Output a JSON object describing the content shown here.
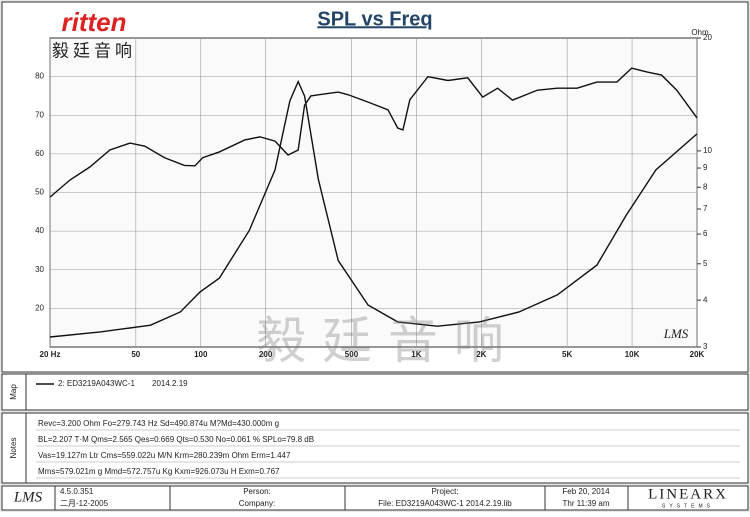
{
  "logo": {
    "brand": "ritten",
    "chinese": "毅廷音响"
  },
  "watermark": "毅 廷 音 响",
  "chart_data": {
    "type": "line",
    "title": "SPL vs Freq",
    "y2label": "Ohm",
    "badge": "LMS",
    "xscale": "log",
    "y2scale": "log",
    "grid": true,
    "xlim": [
      20,
      20000
    ],
    "xticks": [
      {
        "value": 20,
        "label": "20 Hz"
      },
      50,
      100,
      200,
      500,
      {
        "value": 1000,
        "label": "1K"
      },
      {
        "value": 2000,
        "label": "2K"
      },
      {
        "value": 5000,
        "label": "5K"
      },
      {
        "value": 10000,
        "label": "10K"
      },
      {
        "value": 20000,
        "label": "20K"
      }
    ],
    "ylim": [
      10,
      90
    ],
    "yticks": [
      20,
      30,
      40,
      50,
      60,
      70,
      80
    ],
    "y2lim": [
      3,
      20
    ],
    "y2ticks": [
      3,
      4,
      5,
      6,
      7,
      8,
      9,
      10,
      20
    ],
    "series": [
      {
        "color": "#111111",
        "x": [
          20,
          24.7,
          30.6,
          37.9,
          47,
          55,
          68,
          84,
          94,
          102,
          122,
          160,
          188,
          221,
          254,
          283,
          303,
          324,
          351,
          434,
          483,
          597,
          738,
          819,
          866,
          932,
          1131,
          1400,
          1730,
          2030,
          2380,
          2790,
          3640,
          4500,
          5560,
          6870,
          8500,
          9960,
          11700,
          13700,
          16100,
          20000
        ],
        "values": [
          48.8,
          53.2,
          56.6,
          61,
          62.8,
          62,
          59,
          57,
          56.9,
          59,
          60.5,
          63.6,
          64.4,
          63.3,
          59.7,
          61,
          72.6,
          75,
          75.3,
          76,
          75.3,
          73.4,
          71.4,
          66.7,
          66.2,
          74,
          80,
          79,
          79.7,
          74.7,
          77,
          73.9,
          76.5,
          77,
          77,
          78.6,
          78.6,
          82.2,
          81.2,
          80.4,
          76.5,
          69.3
        ]
      },
      {
        "color": "#111111",
        "axis": "y2",
        "x": [
          20,
          34.2,
          58.5,
          80.4,
          99,
          122,
          168,
          221,
          259,
          283,
          303,
          351,
          434,
          597,
          819,
          1250,
          1960,
          2990,
          4500,
          6870,
          9400,
          12900,
          20000
        ],
        "values": [
          3.19,
          3.29,
          3.43,
          3.72,
          4.2,
          4.58,
          6.14,
          8.9,
          13.6,
          15.3,
          14,
          8.4,
          5.1,
          3.88,
          3.5,
          3.41,
          3.5,
          3.72,
          4.13,
          4.96,
          6.74,
          8.9,
          11.1
        ]
      }
    ]
  },
  "map": {
    "label": "Map",
    "legend": "2: ED3219A043WC-1",
    "date": "2014.2.19"
  },
  "notes": {
    "label": "Notes",
    "lines": [
      "Revc=3.200 Ohm  Fo=279.743 Hz  Sd=490.874u  M?Md=430.000m g",
      "BL=2.207 T·M  Qms=2.565  Qes=0.669  Qts=0.530  No=0.061 %  SPLo=79.8 dB",
      "Vas=19.127m Ltr  Cms=559.022u M/N  Krm=280.239m Ohm  Erm=1.447",
      "Mms=579.021m g  Mmd=572.757u Kg  Kxm=926.073u H  Exm=0.767"
    ]
  },
  "footer": {
    "lms": "LMS",
    "version": "4.5.0.351",
    "build": "二月-12-2005",
    "person": "Person:",
    "company": "Company:",
    "project": "Project:",
    "file": "File: ED3219A043WC-1  2014.2.19.lib",
    "date": "Feb 20, 2014",
    "time": "Thr 11:39 am",
    "brand": "LINEARX",
    "brand_sub": "SYSTEMS"
  }
}
